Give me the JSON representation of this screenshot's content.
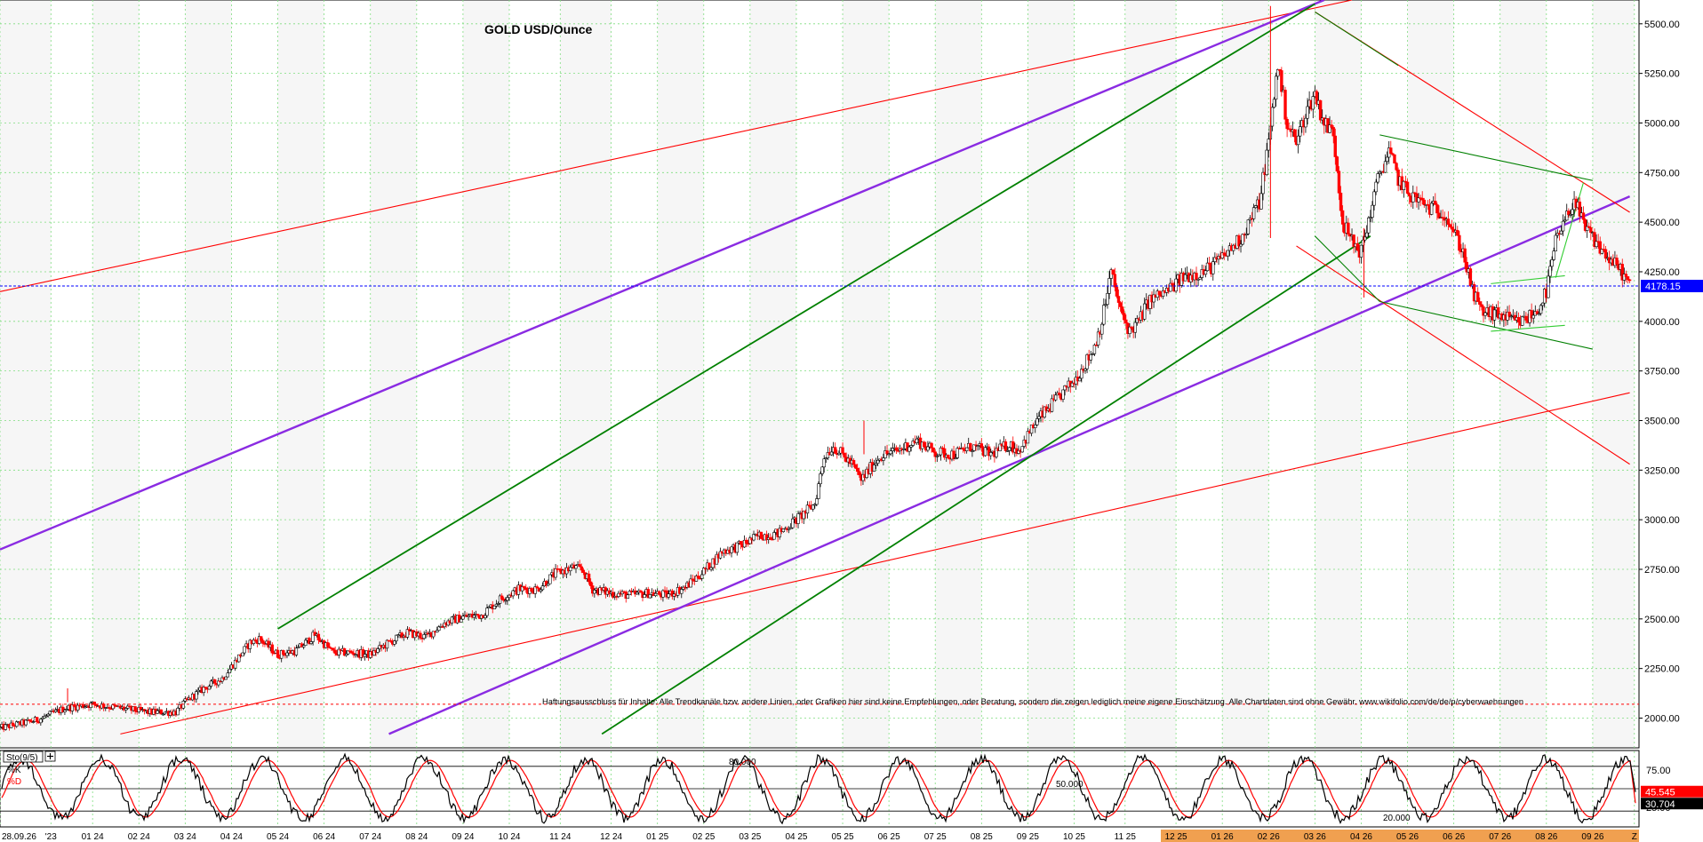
{
  "chart_data": {
    "type": "candlestick",
    "title": "GOLD USD/Ounce",
    "instrument": "GOLD USD/Ounce",
    "ylim": [
      1850,
      5620
    ],
    "yticks": [
      2000,
      2250,
      2500,
      2750,
      3000,
      3250,
      3500,
      3750,
      4000,
      4250,
      4500,
      4750,
      5000,
      5250,
      5500
    ],
    "ytick_labels": [
      "2000.00",
      "2250.00",
      "2500.00",
      "2750.00",
      "3000.00",
      "3250.00",
      "3500.00",
      "3750.00",
      "4000.00",
      "4250.00",
      "4500.00",
      "4750.00",
      "5000.00",
      "5250.00",
      "5500.00"
    ],
    "xticks": [
      {
        "label": "28.09.26",
        "t": 0
      },
      {
        "label": "'23",
        "t": 5.5
      },
      {
        "label": "01 24",
        "t": 10
      },
      {
        "label": "02 24",
        "t": 15
      },
      {
        "label": "03 24",
        "t": 20
      },
      {
        "label": "04 24",
        "t": 25
      },
      {
        "label": "05 24",
        "t": 30
      },
      {
        "label": "06 24",
        "t": 35
      },
      {
        "label": "07 24",
        "t": 40
      },
      {
        "label": "08 24",
        "t": 45
      },
      {
        "label": "09 24",
        "t": 50
      },
      {
        "label": "10 24",
        "t": 55
      },
      {
        "label": "11 24",
        "t": 60.5
      },
      {
        "label": "12 24",
        "t": 66
      },
      {
        "label": "01 25",
        "t": 71
      },
      {
        "label": "02 25",
        "t": 76
      },
      {
        "label": "03 25",
        "t": 81
      },
      {
        "label": "04 25",
        "t": 86
      },
      {
        "label": "05 25",
        "t": 91
      },
      {
        "label": "06 25",
        "t": 96
      },
      {
        "label": "07 25",
        "t": 101
      },
      {
        "label": "08 25",
        "t": 106
      },
      {
        "label": "09 25",
        "t": 111
      },
      {
        "label": "10 25",
        "t": 116
      },
      {
        "label": "11 25",
        "t": 121.5
      },
      {
        "label": "12 25",
        "t": 127
      },
      {
        "label": "01 26",
        "t": 132
      },
      {
        "label": "02 26",
        "t": 137
      },
      {
        "label": "03 26",
        "t": 142
      },
      {
        "label": "04 26",
        "t": 147
      },
      {
        "label": "05 26",
        "t": 152
      },
      {
        "label": "06 26",
        "t": 157
      },
      {
        "label": "07 26",
        "t": 162
      },
      {
        "label": "08 26",
        "t": 167
      },
      {
        "label": "09 26",
        "t": 172
      },
      {
        "label": "Z",
        "t": 176.5
      }
    ],
    "t_range": [
      0,
      177
    ],
    "current_price": 4178.15,
    "current_price_label": "4178.15",
    "price_path": [
      [
        0,
        1950
      ],
      [
        4,
        1990
      ],
      [
        7,
        2050
      ],
      [
        10,
        2070
      ],
      [
        13,
        2050
      ],
      [
        16,
        2030
      ],
      [
        19,
        2030
      ],
      [
        20,
        2080
      ],
      [
        22,
        2150
      ],
      [
        24,
        2200
      ],
      [
        25,
        2260
      ],
      [
        27,
        2380
      ],
      [
        28,
        2400
      ],
      [
        30,
        2320
      ],
      [
        32,
        2340
      ],
      [
        34,
        2420
      ],
      [
        36,
        2330
      ],
      [
        38,
        2330
      ],
      [
        40,
        2320
      ],
      [
        42,
        2380
      ],
      [
        44,
        2430
      ],
      [
        46,
        2410
      ],
      [
        48,
        2480
      ],
      [
        50,
        2510
      ],
      [
        52,
        2520
      ],
      [
        54,
        2600
      ],
      [
        56,
        2650
      ],
      [
        58,
        2650
      ],
      [
        60,
        2730
      ],
      [
        62,
        2760
      ],
      [
        63,
        2740
      ],
      [
        64,
        2650
      ],
      [
        66,
        2630
      ],
      [
        68,
        2620
      ],
      [
        70,
        2630
      ],
      [
        72,
        2620
      ],
      [
        74,
        2660
      ],
      [
        76,
        2740
      ],
      [
        78,
        2840
      ],
      [
        80,
        2870
      ],
      [
        82,
        2920
      ],
      [
        84,
        2930
      ],
      [
        86,
        3000
      ],
      [
        88,
        3080
      ],
      [
        89,
        3320
      ],
      [
        90,
        3370
      ],
      [
        92,
        3280
      ],
      [
        93,
        3200
      ],
      [
        95,
        3320
      ],
      [
        97,
        3350
      ],
      [
        99,
        3400
      ],
      [
        101,
        3340
      ],
      [
        103,
        3330
      ],
      [
        105,
        3370
      ],
      [
        107,
        3330
      ],
      [
        109,
        3380
      ],
      [
        110,
        3350
      ],
      [
        112,
        3500
      ],
      [
        114,
        3600
      ],
      [
        116,
        3700
      ],
      [
        118,
        3850
      ],
      [
        119,
        4000
      ],
      [
        120,
        4250
      ],
      [
        121,
        4050
      ],
      [
        122,
        3950
      ],
      [
        123,
        4000
      ],
      [
        124,
        4100
      ],
      [
        126,
        4150
      ],
      [
        128,
        4230
      ],
      [
        130,
        4250
      ],
      [
        132,
        4320
      ],
      [
        134,
        4420
      ],
      [
        136,
        4600
      ],
      [
        137,
        4900
      ],
      [
        138,
        5300
      ],
      [
        139,
        5000
      ],
      [
        140,
        4900
      ],
      [
        141,
        5050
      ],
      [
        142,
        5150
      ],
      [
        143,
        5000
      ],
      [
        144,
        4950
      ],
      [
        145,
        4500
      ],
      [
        146,
        4400
      ],
      [
        147,
        4350
      ],
      [
        148,
        4550
      ],
      [
        149,
        4750
      ],
      [
        150,
        4850
      ],
      [
        151,
        4720
      ],
      [
        152,
        4650
      ],
      [
        154,
        4580
      ],
      [
        156,
        4550
      ],
      [
        157,
        4450
      ],
      [
        158,
        4350
      ],
      [
        159,
        4150
      ],
      [
        160,
        4050
      ],
      [
        162,
        4030
      ],
      [
        164,
        3990
      ],
      [
        166,
        4050
      ],
      [
        167,
        4150
      ],
      [
        168,
        4400
      ],
      [
        169,
        4500
      ],
      [
        170,
        4620
      ],
      [
        171,
        4480
      ],
      [
        172,
        4420
      ],
      [
        173,
        4360
      ],
      [
        174,
        4300
      ],
      [
        175,
        4260
      ],
      [
        176,
        4178
      ]
    ],
    "annotations": [
      {
        "text": "Haftungsausschluss für Inhalte: Alle Trendkanäle bzw. andere Linien, oder Grafiken hier sind keine Empfehlungen, oder Beratung, sondern die zeigen lediglich meine eigene Einschätzung. Alle Chartdaten sind ohne Gewähr.  www.wikifolio.com/de/de/p/cyberwaehrungen"
      }
    ],
    "trendlines": [
      {
        "color": "#ff0000",
        "from": [
          0,
          4150
        ],
        "to": [
          146,
          5620
        ]
      },
      {
        "color": "#ff0000",
        "from": [
          13,
          1920
        ],
        "to": [
          176,
          3640
        ]
      },
      {
        "color": "#8a2be2",
        "from": [
          0,
          2850
        ],
        "to": [
          143,
          5620
        ]
      },
      {
        "color": "#8a2be2",
        "from": [
          42,
          1920
        ],
        "to": [
          176,
          4630
        ]
      },
      {
        "color": "#008000",
        "from": [
          30,
          2450
        ],
        "to": [
          142,
          5600
        ]
      },
      {
        "color": "#008000",
        "from": [
          65,
          1920
        ],
        "to": [
          148,
          4430
        ]
      },
      {
        "color": "#ff0000",
        "from": [
          142,
          5560
        ],
        "to": [
          176,
          4550
        ]
      },
      {
        "color": "#ff0000",
        "from": [
          140,
          4380
        ],
        "to": [
          176,
          3280
        ]
      },
      {
        "color": "#008000",
        "from": [
          142,
          5560
        ],
        "to": [
          151,
          5290
        ]
      },
      {
        "color": "#008000",
        "from": [
          142,
          4430
        ],
        "to": [
          149,
          4100
        ]
      },
      {
        "color": "#008000",
        "from": [
          149,
          4940
        ],
        "to": [
          172,
          4710
        ]
      },
      {
        "color": "#008000",
        "from": [
          149,
          4100
        ],
        "to": [
          172,
          3860
        ]
      },
      {
        "color": "#32cd32",
        "from": [
          161,
          3950
        ],
        "to": [
          169,
          3980
        ]
      },
      {
        "color": "#32cd32",
        "from": [
          161,
          4190
        ],
        "to": [
          169,
          4230
        ]
      },
      {
        "color": "#32cd32",
        "from": [
          168,
          4220
        ],
        "to": [
          171,
          4700
        ]
      }
    ],
    "colors": {
      "bull": "#000000",
      "bear": "#ff0000",
      "grid": "#7fdd7f",
      "price_line": "#0000ff",
      "price_box": "#0000ff"
    },
    "grid": true,
    "stochastic": {
      "name": "Sto(9/5)",
      "k_label": "%K",
      "d_label": "%D",
      "levels": [
        20,
        50,
        80
      ],
      "level_labels": [
        "20.000",
        "50.000",
        "80.000"
      ],
      "ytick_labels": [
        "75.00",
        "25.00"
      ],
      "k_value": 45.545,
      "k_value_label": "45.545",
      "d_value": 30.704,
      "d_value_label": "30.704",
      "k_color": "#000000",
      "d_color": "#ff0000"
    }
  }
}
